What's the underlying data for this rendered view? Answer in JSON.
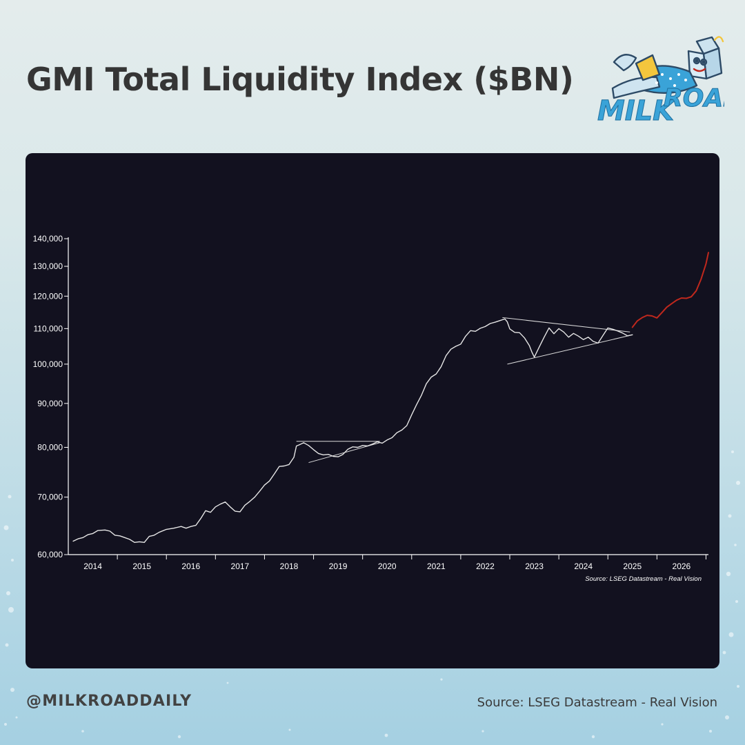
{
  "page": {
    "title": "GMI Total Liquidity Index ($BN)",
    "handle": "@MILKROADDAILY",
    "footer_source": "Source: LSEG Datastream - Real Vision",
    "logo_text": "MILK ROAD"
  },
  "colors": {
    "panel_bg": "#12111f",
    "history_line": "#e6e6e6",
    "projection_line": "#c0281d",
    "axis": "#ffffff",
    "title": "#353535",
    "logo_blue": "#3aa3d8"
  },
  "chart_data": {
    "type": "line",
    "title": "",
    "xlabel": "",
    "ylabel": "",
    "scale": "log",
    "ylim": [
      60000,
      140000
    ],
    "xlim": [
      2013.5,
      2026.55
    ],
    "yticks": [
      {
        "value": 60000,
        "label": "60,000"
      },
      {
        "value": 70000,
        "label": "70,000"
      },
      {
        "value": 80000,
        "label": "80,000"
      },
      {
        "value": 90000,
        "label": "90,000"
      },
      {
        "value": 100000,
        "label": "100,000"
      },
      {
        "value": 110000,
        "label": "110,000"
      },
      {
        "value": 120000,
        "label": "120,000"
      },
      {
        "value": 130000,
        "label": "130,000"
      },
      {
        "value": 140000,
        "label": "140,000"
      }
    ],
    "xticks": [
      "2014",
      "2015",
      "2016",
      "2017",
      "2018",
      "2019",
      "2020",
      "2021",
      "2022",
      "2023",
      "2024",
      "2025",
      "2026"
    ],
    "source_note": "Source: LSEG Datastream - Real Vision",
    "grid": false,
    "series": [
      {
        "role": "history",
        "color": "#e6e6e6",
        "points": [
          [
            2013.6,
            62200
          ],
          [
            2013.7,
            62600
          ],
          [
            2013.8,
            62800
          ],
          [
            2013.9,
            63300
          ],
          [
            2014.0,
            63500
          ],
          [
            2014.1,
            64000
          ],
          [
            2014.25,
            64100
          ],
          [
            2014.35,
            63900
          ],
          [
            2014.45,
            63200
          ],
          [
            2014.55,
            63100
          ],
          [
            2014.65,
            62800
          ],
          [
            2014.75,
            62500
          ],
          [
            2014.85,
            62000
          ],
          [
            2014.95,
            62100
          ],
          [
            2015.05,
            62000
          ],
          [
            2015.15,
            63000
          ],
          [
            2015.25,
            63200
          ],
          [
            2015.35,
            63700
          ],
          [
            2015.5,
            64200
          ],
          [
            2015.65,
            64400
          ],
          [
            2015.8,
            64700
          ],
          [
            2015.9,
            64400
          ],
          [
            2016.0,
            64700
          ],
          [
            2016.1,
            64900
          ],
          [
            2016.2,
            66100
          ],
          [
            2016.3,
            67500
          ],
          [
            2016.4,
            67200
          ],
          [
            2016.5,
            68200
          ],
          [
            2016.6,
            68700
          ],
          [
            2016.7,
            69100
          ],
          [
            2016.8,
            68200
          ],
          [
            2016.9,
            67400
          ],
          [
            2017.0,
            67300
          ],
          [
            2017.1,
            68500
          ],
          [
            2017.2,
            69200
          ],
          [
            2017.3,
            70000
          ],
          [
            2017.4,
            71100
          ],
          [
            2017.5,
            72300
          ],
          [
            2017.6,
            73100
          ],
          [
            2017.7,
            74500
          ],
          [
            2017.8,
            76000
          ],
          [
            2017.9,
            76100
          ],
          [
            2018.0,
            76400
          ],
          [
            2018.1,
            77900
          ],
          [
            2018.15,
            80300
          ],
          [
            2018.2,
            80500
          ],
          [
            2018.3,
            81000
          ],
          [
            2018.4,
            80400
          ],
          [
            2018.5,
            79500
          ],
          [
            2018.6,
            78700
          ],
          [
            2018.7,
            78400
          ],
          [
            2018.8,
            78500
          ],
          [
            2018.9,
            78100
          ],
          [
            2019.0,
            78000
          ],
          [
            2019.1,
            78500
          ],
          [
            2019.2,
            79600
          ],
          [
            2019.3,
            80100
          ],
          [
            2019.4,
            80000
          ],
          [
            2019.5,
            80400
          ],
          [
            2019.6,
            80300
          ],
          [
            2019.7,
            80700
          ],
          [
            2019.8,
            81200
          ],
          [
            2019.9,
            80900
          ],
          [
            2020.0,
            81600
          ],
          [
            2020.1,
            82100
          ],
          [
            2020.2,
            83200
          ],
          [
            2020.3,
            83800
          ],
          [
            2020.4,
            84800
          ],
          [
            2020.5,
            87300
          ],
          [
            2020.6,
            89700
          ],
          [
            2020.7,
            92000
          ],
          [
            2020.8,
            94900
          ],
          [
            2020.9,
            96600
          ],
          [
            2021.0,
            97400
          ],
          [
            2021.1,
            99300
          ],
          [
            2021.2,
            102300
          ],
          [
            2021.3,
            104100
          ],
          [
            2021.4,
            104900
          ],
          [
            2021.5,
            105500
          ],
          [
            2021.6,
            107800
          ],
          [
            2021.7,
            109400
          ],
          [
            2021.8,
            109200
          ],
          [
            2021.9,
            110100
          ],
          [
            2022.0,
            110600
          ],
          [
            2022.1,
            111500
          ],
          [
            2022.2,
            111900
          ],
          [
            2022.3,
            112400
          ],
          [
            2022.4,
            112900
          ],
          [
            2022.45,
            112000
          ],
          [
            2022.5,
            109900
          ],
          [
            2022.6,
            108900
          ],
          [
            2022.7,
            108800
          ],
          [
            2022.8,
            107300
          ],
          [
            2022.9,
            105100
          ],
          [
            2022.95,
            103300
          ],
          [
            2023.0,
            101900
          ],
          [
            2023.1,
            104700
          ],
          [
            2023.2,
            107500
          ],
          [
            2023.3,
            110200
          ],
          [
            2023.4,
            108500
          ],
          [
            2023.5,
            110000
          ],
          [
            2023.6,
            109000
          ],
          [
            2023.7,
            107500
          ],
          [
            2023.8,
            108600
          ],
          [
            2023.9,
            107800
          ],
          [
            2024.0,
            106800
          ],
          [
            2024.1,
            107500
          ],
          [
            2024.2,
            106300
          ],
          [
            2024.3,
            105800
          ],
          [
            2024.4,
            108000
          ],
          [
            2024.5,
            110200
          ],
          [
            2024.6,
            109800
          ],
          [
            2024.7,
            109300
          ],
          [
            2024.8,
            108700
          ],
          [
            2024.9,
            107900
          ],
          [
            2025.0,
            108200
          ]
        ]
      },
      {
        "role": "projection",
        "color": "#c0281d",
        "points": [
          [
            2025.0,
            110400
          ],
          [
            2025.1,
            112300
          ],
          [
            2025.2,
            113300
          ],
          [
            2025.3,
            114000
          ],
          [
            2025.4,
            113800
          ],
          [
            2025.5,
            113200
          ],
          [
            2025.6,
            114800
          ],
          [
            2025.7,
            116500
          ],
          [
            2025.8,
            117600
          ],
          [
            2025.9,
            118700
          ],
          [
            2026.0,
            119400
          ],
          [
            2026.1,
            119300
          ],
          [
            2026.2,
            119800
          ],
          [
            2026.3,
            121700
          ],
          [
            2026.4,
            125600
          ],
          [
            2026.5,
            130800
          ],
          [
            2026.55,
            134900
          ]
        ]
      }
    ],
    "trendlines": [
      {
        "pattern": "2018-2019 ascending triangle",
        "edge": "upper",
        "from": [
          2018.15,
          81300
        ],
        "to": [
          2019.85,
          81300
        ]
      },
      {
        "pattern": "2018-2019 ascending triangle",
        "edge": "lower",
        "from": [
          2018.4,
          76800
        ],
        "to": [
          2019.85,
          81000
        ]
      },
      {
        "pattern": "2022-2024 symmetrical triangle",
        "edge": "upper",
        "from": [
          2022.35,
          113300
        ],
        "to": [
          2024.95,
          109000
        ]
      },
      {
        "pattern": "2022-2024 symmetrical triangle",
        "edge": "lower",
        "from": [
          2022.45,
          100000
        ],
        "to": [
          2024.95,
          108000
        ]
      }
    ]
  }
}
